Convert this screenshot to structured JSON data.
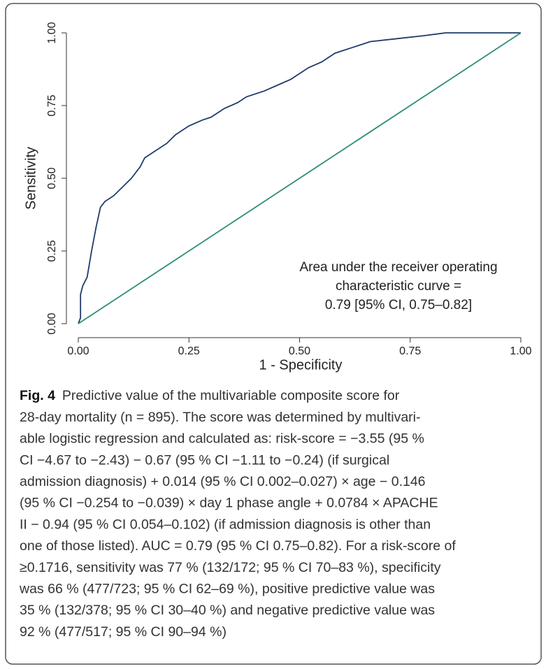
{
  "chart_data": {
    "type": "line",
    "xlabel": "1 - Specificity",
    "ylabel": "Sensitivity",
    "xlim": [
      0,
      1
    ],
    "ylim": [
      0,
      1
    ],
    "xticks": [
      {
        "value": 0,
        "label": "0.00"
      },
      {
        "value": 0.25,
        "label": "0.25"
      },
      {
        "value": 0.5,
        "label": "0.50"
      },
      {
        "value": 0.75,
        "label": "0.75"
      },
      {
        "value": 1,
        "label": "1.00"
      }
    ],
    "yticks": [
      {
        "value": 0,
        "label": "0.00"
      },
      {
        "value": 0.25,
        "label": "0.25"
      },
      {
        "value": 0.5,
        "label": "0.50"
      },
      {
        "value": 0.75,
        "label": "0.75"
      },
      {
        "value": 1,
        "label": "1.00"
      }
    ],
    "series": [
      {
        "color": "#1f3b6b",
        "x": [
          0,
          0.005,
          0.005,
          0.01,
          0.02,
          0.03,
          0.04,
          0.05,
          0.06,
          0.08,
          0.1,
          0.12,
          0.14,
          0.15,
          0.17,
          0.2,
          0.22,
          0.25,
          0.28,
          0.3,
          0.33,
          0.36,
          0.38,
          0.42,
          0.45,
          0.48,
          0.5,
          0.52,
          0.55,
          0.58,
          0.62,
          0.66,
          0.72,
          0.78,
          0.83,
          1
        ],
        "values": [
          0,
          0.02,
          0.1,
          0.13,
          0.16,
          0.25,
          0.33,
          0.4,
          0.42,
          0.44,
          0.47,
          0.5,
          0.54,
          0.57,
          0.59,
          0.62,
          0.65,
          0.68,
          0.7,
          0.71,
          0.74,
          0.76,
          0.78,
          0.8,
          0.82,
          0.84,
          0.86,
          0.88,
          0.9,
          0.93,
          0.95,
          0.97,
          0.98,
          0.99,
          1,
          1
        ]
      },
      {
        "color": "#2e8b7a",
        "x": [
          0,
          1
        ],
        "values": [
          0,
          1
        ]
      }
    ],
    "annotation": [
      "Area under the receiver operating",
      "characteristic curve =",
      "0.79 [95% CI, 0.75–0.82]"
    ]
  },
  "caption": {
    "label": "Fig. 4",
    "lines": [
      "Predictive value of the multivariable composite score for",
      "28-day mortality (n = 895). The score was determined by multivari-",
      "able logistic regression and calculated as:  risk-score = −3.55 (95 %",
      "CI −4.67 to −2.43) − 0.67 (95 % CI −1.11 to −0.24) (if surgical",
      "admission diagnosis) + 0.014 (95 % CI 0.002–0.027) × age − 0.146",
      "(95 % CI −0.254 to −0.039) × day 1 phase angle + 0.0784 × APACHE",
      "II − 0.94 (95 % CI 0.054–0.102) (if admission diagnosis is other than",
      "one of those listed). AUC = 0.79 (95 % CI 0.75–0.82). For a risk-score of",
      "≥0.1716, sensitivity was 77 % (132/172; 95 % CI 70–83 %), specificity",
      "was 66 % (477/723; 95 % CI 62–69 %), positive predictive value was",
      "35 % (132/378; 95 % CI 30–40 %) and negative predictive value was",
      "92 % (477/517; 95 % CI 90–94 %)"
    ]
  }
}
